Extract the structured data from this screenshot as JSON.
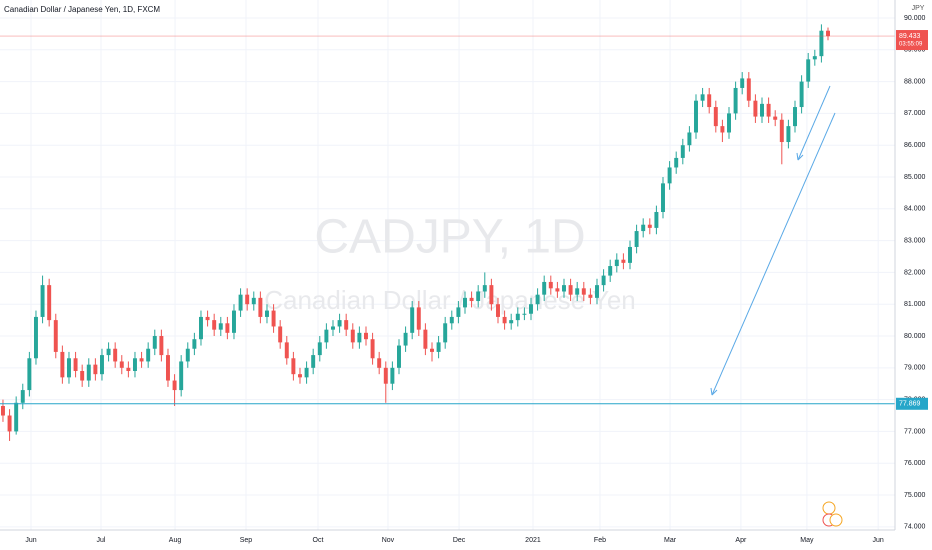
{
  "chart_data": {
    "type": "candlestick",
    "title": "Canadian Dollar / Japanese Yen, 1D, FXCM",
    "watermark": "CADJPY, 1D",
    "watermark_subtitle": "Canadian Dollar / Japanese Yen",
    "currency": "JPY",
    "up_color": "#26a69a",
    "down_color": "#ef5350",
    "candles": [
      [
        77.8,
        78.0,
        77.3,
        77.5
      ],
      [
        77.5,
        77.7,
        76.7,
        77.0
      ],
      [
        77.0,
        78.1,
        76.9,
        77.9
      ],
      [
        77.9,
        78.5,
        77.7,
        78.3
      ],
      [
        78.3,
        79.5,
        78.1,
        79.3
      ],
      [
        79.3,
        80.8,
        79.1,
        80.6
      ],
      [
        80.6,
        81.9,
        80.4,
        81.6
      ],
      [
        81.6,
        81.8,
        80.3,
        80.5
      ],
      [
        80.5,
        80.7,
        79.3,
        79.5
      ],
      [
        79.5,
        79.7,
        78.5,
        78.7
      ],
      [
        78.7,
        79.5,
        78.5,
        79.3
      ],
      [
        79.3,
        79.5,
        78.7,
        78.9
      ],
      [
        78.9,
        79.1,
        78.4,
        78.6
      ],
      [
        78.6,
        79.3,
        78.4,
        79.1
      ],
      [
        79.1,
        79.3,
        78.6,
        78.8
      ],
      [
        78.8,
        79.6,
        78.6,
        79.4
      ],
      [
        79.4,
        79.8,
        79.2,
        79.6
      ],
      [
        79.6,
        79.8,
        79.0,
        79.2
      ],
      [
        79.2,
        79.4,
        78.8,
        79.0
      ],
      [
        79.0,
        79.2,
        78.7,
        78.9
      ],
      [
        78.9,
        79.5,
        78.7,
        79.3
      ],
      [
        79.3,
        79.5,
        79.0,
        79.2
      ],
      [
        79.2,
        79.8,
        79.0,
        79.6
      ],
      [
        79.6,
        80.2,
        79.4,
        80.0
      ],
      [
        80.0,
        80.2,
        79.2,
        79.4
      ],
      [
        79.4,
        79.6,
        78.4,
        78.6
      ],
      [
        78.6,
        78.8,
        77.8,
        78.3
      ],
      [
        78.3,
        79.4,
        78.1,
        79.2
      ],
      [
        79.2,
        79.8,
        79.0,
        79.6
      ],
      [
        79.6,
        80.1,
        79.4,
        79.9
      ],
      [
        79.9,
        80.8,
        79.7,
        80.6
      ],
      [
        80.6,
        80.8,
        80.3,
        80.5
      ],
      [
        80.5,
        80.7,
        80.0,
        80.2
      ],
      [
        80.2,
        80.6,
        80.0,
        80.4
      ],
      [
        80.4,
        80.6,
        79.9,
        80.1
      ],
      [
        80.1,
        81.0,
        79.9,
        80.8
      ],
      [
        80.8,
        81.5,
        80.6,
        81.3
      ],
      [
        81.3,
        81.5,
        80.8,
        81.0
      ],
      [
        81.0,
        81.4,
        80.8,
        81.2
      ],
      [
        81.2,
        81.4,
        80.4,
        80.6
      ],
      [
        80.6,
        81.0,
        80.4,
        80.8
      ],
      [
        80.8,
        81.0,
        80.1,
        80.3
      ],
      [
        80.3,
        80.5,
        79.6,
        79.8
      ],
      [
        79.8,
        80.0,
        79.1,
        79.3
      ],
      [
        79.3,
        79.5,
        78.6,
        78.8
      ],
      [
        78.8,
        79.0,
        78.5,
        78.7
      ],
      [
        78.7,
        79.2,
        78.5,
        79.0
      ],
      [
        79.0,
        79.6,
        78.8,
        79.4
      ],
      [
        79.4,
        80.0,
        79.2,
        79.8
      ],
      [
        79.8,
        80.4,
        79.6,
        80.2
      ],
      [
        80.2,
        80.5,
        80.0,
        80.3
      ],
      [
        80.3,
        80.7,
        80.1,
        80.5
      ],
      [
        80.5,
        80.7,
        80.0,
        80.2
      ],
      [
        80.2,
        80.4,
        79.6,
        79.8
      ],
      [
        79.8,
        80.3,
        79.6,
        80.1
      ],
      [
        80.1,
        80.3,
        79.7,
        79.9
      ],
      [
        79.9,
        80.1,
        79.1,
        79.3
      ],
      [
        79.3,
        79.5,
        78.8,
        79.0
      ],
      [
        79.0,
        79.2,
        77.9,
        78.5
      ],
      [
        78.5,
        79.2,
        78.3,
        79.0
      ],
      [
        79.0,
        79.9,
        78.8,
        79.7
      ],
      [
        79.7,
        80.3,
        79.5,
        80.1
      ],
      [
        80.1,
        81.1,
        79.9,
        80.9
      ],
      [
        80.9,
        81.1,
        80.0,
        80.2
      ],
      [
        80.2,
        80.4,
        79.4,
        79.6
      ],
      [
        79.6,
        79.8,
        79.2,
        79.5
      ],
      [
        79.5,
        80.0,
        79.3,
        79.8
      ],
      [
        79.8,
        80.6,
        79.6,
        80.4
      ],
      [
        80.4,
        80.8,
        80.2,
        80.6
      ],
      [
        80.6,
        81.1,
        80.4,
        80.9
      ],
      [
        80.9,
        81.4,
        80.7,
        81.2
      ],
      [
        81.2,
        81.4,
        80.9,
        81.1
      ],
      [
        81.1,
        81.6,
        80.9,
        81.4
      ],
      [
        81.4,
        82.0,
        81.2,
        81.6
      ],
      [
        81.6,
        81.8,
        80.8,
        81.0
      ],
      [
        81.0,
        81.2,
        80.4,
        80.6
      ],
      [
        80.6,
        80.8,
        80.2,
        80.4
      ],
      [
        80.4,
        80.7,
        80.2,
        80.5
      ],
      [
        80.5,
        80.9,
        80.3,
        80.7
      ],
      [
        80.7,
        80.9,
        80.5,
        80.7
      ],
      [
        80.7,
        81.2,
        80.5,
        81.0
      ],
      [
        81.0,
        81.5,
        80.8,
        81.3
      ],
      [
        81.3,
        81.9,
        81.1,
        81.7
      ],
      [
        81.7,
        81.9,
        81.3,
        81.5
      ],
      [
        81.5,
        81.7,
        81.2,
        81.4
      ],
      [
        81.4,
        81.8,
        81.2,
        81.6
      ],
      [
        81.6,
        81.8,
        81.1,
        81.3
      ],
      [
        81.3,
        81.7,
        81.1,
        81.5
      ],
      [
        81.5,
        81.7,
        81.1,
        81.3
      ],
      [
        81.3,
        81.5,
        81.0,
        81.2
      ],
      [
        81.2,
        81.8,
        81.0,
        81.6
      ],
      [
        81.6,
        82.1,
        81.4,
        81.9
      ],
      [
        81.9,
        82.4,
        81.7,
        82.2
      ],
      [
        82.2,
        82.6,
        82.0,
        82.4
      ],
      [
        82.4,
        82.6,
        82.1,
        82.3
      ],
      [
        82.3,
        83.0,
        82.1,
        82.8
      ],
      [
        82.8,
        83.5,
        82.6,
        83.3
      ],
      [
        83.3,
        83.7,
        83.1,
        83.5
      ],
      [
        83.5,
        83.7,
        83.2,
        83.4
      ],
      [
        83.4,
        84.1,
        83.2,
        83.9
      ],
      [
        83.9,
        85.0,
        83.7,
        84.8
      ],
      [
        84.8,
        85.5,
        84.6,
        85.3
      ],
      [
        85.3,
        85.8,
        85.1,
        85.6
      ],
      [
        85.6,
        86.2,
        85.4,
        86.0
      ],
      [
        86.0,
        86.6,
        85.8,
        86.4
      ],
      [
        86.4,
        87.6,
        86.2,
        87.4
      ],
      [
        87.4,
        87.8,
        87.2,
        87.6
      ],
      [
        87.6,
        87.8,
        87.0,
        87.2
      ],
      [
        87.2,
        87.4,
        86.4,
        86.6
      ],
      [
        86.6,
        86.8,
        86.1,
        86.4
      ],
      [
        86.4,
        87.2,
        86.2,
        87.0
      ],
      [
        87.0,
        88.0,
        86.8,
        87.8
      ],
      [
        87.8,
        88.3,
        87.6,
        88.1
      ],
      [
        88.1,
        88.3,
        87.2,
        87.4
      ],
      [
        87.4,
        87.6,
        86.7,
        86.9
      ],
      [
        86.9,
        87.5,
        86.7,
        87.3
      ],
      [
        87.3,
        87.5,
        86.7,
        86.9
      ],
      [
        86.9,
        87.1,
        86.6,
        86.8
      ],
      [
        86.8,
        87.0,
        85.4,
        86.1
      ],
      [
        86.1,
        86.8,
        85.9,
        86.6
      ],
      [
        86.6,
        87.4,
        86.4,
        87.2
      ],
      [
        87.2,
        88.2,
        87.0,
        88.0
      ],
      [
        88.0,
        88.9,
        87.8,
        88.7
      ],
      [
        88.7,
        89.0,
        88.5,
        88.8
      ],
      [
        88.8,
        89.8,
        88.6,
        89.6
      ],
      [
        89.6,
        89.7,
        89.3,
        89.43
      ]
    ],
    "xlim": [
      -0.45,
      135.15
    ],
    "xticks": [
      {
        "value": 4.25,
        "label": "Jun"
      },
      {
        "value": 14.85,
        "label": "Jul"
      },
      {
        "value": 26.07,
        "label": "Aug"
      },
      {
        "value": 36.82,
        "label": "Sep"
      },
      {
        "value": 47.73,
        "label": "Oct"
      },
      {
        "value": 58.33,
        "label": "Nov"
      },
      {
        "value": 69.1,
        "label": "Dec"
      },
      {
        "value": 80.3,
        "label": "2021"
      },
      {
        "value": 90.45,
        "label": "Feb"
      },
      {
        "value": 101.07,
        "label": "Mar"
      },
      {
        "value": 111.8,
        "label": "Apr"
      },
      {
        "value": 121.8,
        "label": "May"
      },
      {
        "value": 132.6,
        "label": "Jun"
      }
    ],
    "ylim": [
      73.9,
      90.566
    ],
    "yticks": [
      {
        "value": 74,
        "label": "74.000"
      },
      {
        "value": 75,
        "label": "75.000"
      },
      {
        "value": 76,
        "label": "76.000"
      },
      {
        "value": 77,
        "label": "77.000"
      },
      {
        "value": 78,
        "label": "78.000"
      },
      {
        "value": 79,
        "label": "79.000"
      },
      {
        "value": 80,
        "label": "80.000"
      },
      {
        "value": 81,
        "label": "81.000"
      },
      {
        "value": 82,
        "label": "82.000"
      },
      {
        "value": 83,
        "label": "83.000"
      },
      {
        "value": 84,
        "label": "84.000"
      },
      {
        "value": 85,
        "label": "85.000"
      },
      {
        "value": 86,
        "label": "86.000"
      },
      {
        "value": 87,
        "label": "87.000"
      },
      {
        "value": 88,
        "label": "88.000"
      },
      {
        "value": 89,
        "label": "89.000"
      },
      {
        "value": 90,
        "label": "90.000"
      }
    ],
    "grid": true,
    "horizontal_line": 77.869,
    "horizontal_line_color": "#26a6c9",
    "last_price": 89.433,
    "last_price_color": "#ef5350",
    "countdown": "03:55:09"
  }
}
